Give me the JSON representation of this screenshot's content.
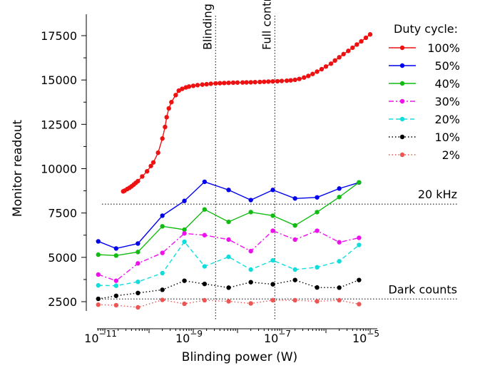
{
  "chart_data": {
    "type": "line",
    "title": "",
    "xlabel": "Blinding power (W)",
    "ylabel": "Monitor readout",
    "x_scale": "log",
    "xlim": [
      5e-12,
      1.4e-05
    ],
    "ylim": [
      1900,
      18200
    ],
    "x_ticks": [
      1e-11,
      1e-09,
      1e-07,
      1e-05
    ],
    "x_tick_labels": [
      {
        "base": "10",
        "exp": "−11"
      },
      {
        "base": "10",
        "exp": "−9"
      },
      {
        "base": "10",
        "exp": "−7"
      },
      {
        "base": "10",
        "exp": "−5"
      }
    ],
    "y_ticks": [
      2500,
      5000,
      7500,
      10000,
      12500,
      15000,
      17500
    ],
    "y_tick_labels": [
      "2500",
      "5000",
      "7500",
      "10000",
      "12500",
      "15000",
      "17500"
    ],
    "grid": false,
    "legend": {
      "title": "Duty cycle:",
      "position": "top-right"
    },
    "vlines": [
      {
        "x": 3.2e-09,
        "label": "Blinding"
      },
      {
        "x": 7e-08,
        "label": "Full control"
      }
    ],
    "hlines": [
      {
        "y": 8000,
        "label": "20 kHz"
      },
      {
        "y": 2650,
        "label": "Dark counts"
      }
    ],
    "series": [
      {
        "name": "100%",
        "color": "#ee1111",
        "dash": "solid",
        "x": [
          2.6e-11,
          2.8e-11,
          3.2e-11,
          3.6e-11,
          4e-11,
          4.5e-11,
          5e-11,
          5.6e-11,
          7e-11,
          9e-11,
          1.1e-10,
          1.25e-10,
          1.6e-10,
          2e-10,
          2.3e-10,
          2.5e-10,
          2.8e-10,
          3.2e-10,
          4e-10,
          4.7e-10,
          5.6e-10,
          6.8e-10,
          8e-10,
          1e-09,
          1.25e-09,
          1.6e-09,
          2e-09,
          2.5e-09,
          3.2e-09,
          4e-09,
          5e-09,
          6.3e-09,
          8e-09,
          1e-08,
          1.3e-08,
          1.6e-08,
          2e-08,
          2.5e-08,
          3.2e-08,
          4e-08,
          5e-08,
          6.3e-08,
          8e-08,
          1e-07,
          1.3e-07,
          1.6e-07,
          2e-07,
          2.5e-07,
          3.2e-07,
          4e-07,
          5e-07,
          6.3e-07,
          8e-07,
          1e-06,
          1.3e-06,
          1.6e-06,
          2e-06,
          2.5e-06,
          3.2e-06,
          4e-06,
          5e-06,
          6.3e-06,
          8e-06,
          1e-05
        ],
        "y": [
          8720,
          8760,
          8850,
          8920,
          9000,
          9100,
          9200,
          9300,
          9560,
          9850,
          10150,
          10350,
          10900,
          11700,
          12350,
          12900,
          13400,
          13750,
          14150,
          14400,
          14500,
          14580,
          14630,
          14670,
          14710,
          14740,
          14760,
          14790,
          14810,
          14820,
          14830,
          14840,
          14850,
          14855,
          14860,
          14865,
          14870,
          14880,
          14890,
          14900,
          14910,
          14920,
          14930,
          14945,
          14960,
          14980,
          15010,
          15060,
          15140,
          15230,
          15340,
          15470,
          15610,
          15760,
          15920,
          16100,
          16280,
          16460,
          16640,
          16820,
          17000,
          17180,
          17380,
          17570
        ]
      },
      {
        "name": "50%",
        "color": "#0000ee",
        "dash": "solid",
        "x": [
          7.1e-12,
          1.8e-11,
          5.6e-11,
          2e-10,
          6.3e-10,
          1.8e-09,
          6.3e-09,
          2e-08,
          6.3e-08,
          2e-07,
          6.3e-07,
          2e-06,
          5.6e-06
        ],
        "y": [
          5900,
          5500,
          5780,
          7350,
          8180,
          9260,
          8800,
          8230,
          8800,
          8320,
          8380,
          8880,
          9220
        ]
      },
      {
        "name": "40%",
        "color": "#11bb11",
        "dash": "solid",
        "x": [
          7.1e-12,
          1.8e-11,
          5.6e-11,
          2e-10,
          6.3e-10,
          1.8e-09,
          6.3e-09,
          2e-08,
          6.3e-08,
          2e-07,
          6.3e-07,
          2e-06,
          5.6e-06
        ],
        "y": [
          5150,
          5100,
          5300,
          6750,
          6560,
          7700,
          7000,
          7550,
          7350,
          6800,
          7550,
          8400,
          9230
        ]
      },
      {
        "name": "30%",
        "color": "#ee11ee",
        "dash": "dashdot",
        "x": [
          7.1e-12,
          1.8e-11,
          5.6e-11,
          2e-10,
          6.3e-10,
          1.8e-09,
          6.3e-09,
          2e-08,
          6.3e-08,
          2e-07,
          6.3e-07,
          2e-06,
          5.6e-06
        ],
        "y": [
          4030,
          3680,
          4660,
          5250,
          6350,
          6250,
          6000,
          5350,
          6500,
          6000,
          6500,
          5850,
          6100
        ]
      },
      {
        "name": "20%",
        "color": "#11dddd",
        "dash": "dashed",
        "x": [
          7.1e-12,
          1.8e-11,
          5.6e-11,
          2e-10,
          6.3e-10,
          1.8e-09,
          6.3e-09,
          2e-08,
          6.3e-08,
          2e-07,
          6.3e-07,
          2e-06,
          5.6e-06
        ],
        "y": [
          3420,
          3400,
          3620,
          4110,
          5880,
          4490,
          5030,
          4310,
          4830,
          4310,
          4440,
          4780,
          5700
        ]
      },
      {
        "name": "10%",
        "color": "#000000",
        "dash": "dotted",
        "x": [
          7.1e-12,
          1.8e-11,
          5.6e-11,
          2e-10,
          6.3e-10,
          1.8e-09,
          6.3e-09,
          2e-08,
          6.3e-08,
          2e-07,
          6.3e-07,
          2e-06,
          5.6e-06
        ],
        "y": [
          2660,
          2830,
          2990,
          3170,
          3680,
          3500,
          3290,
          3600,
          3480,
          3720,
          3300,
          3290,
          3720
        ]
      },
      {
        "name": "2%",
        "color": "#ee5555",
        "dash": "dotted",
        "x": [
          7.1e-12,
          1.8e-11,
          5.6e-11,
          2e-10,
          6.3e-10,
          1.8e-09,
          6.3e-09,
          2e-08,
          6.3e-08,
          2e-07,
          6.3e-07,
          2e-06,
          5.6e-06
        ],
        "y": [
          2330,
          2300,
          2180,
          2600,
          2380,
          2580,
          2520,
          2400,
          2580,
          2580,
          2520,
          2580,
          2360
        ]
      }
    ]
  }
}
